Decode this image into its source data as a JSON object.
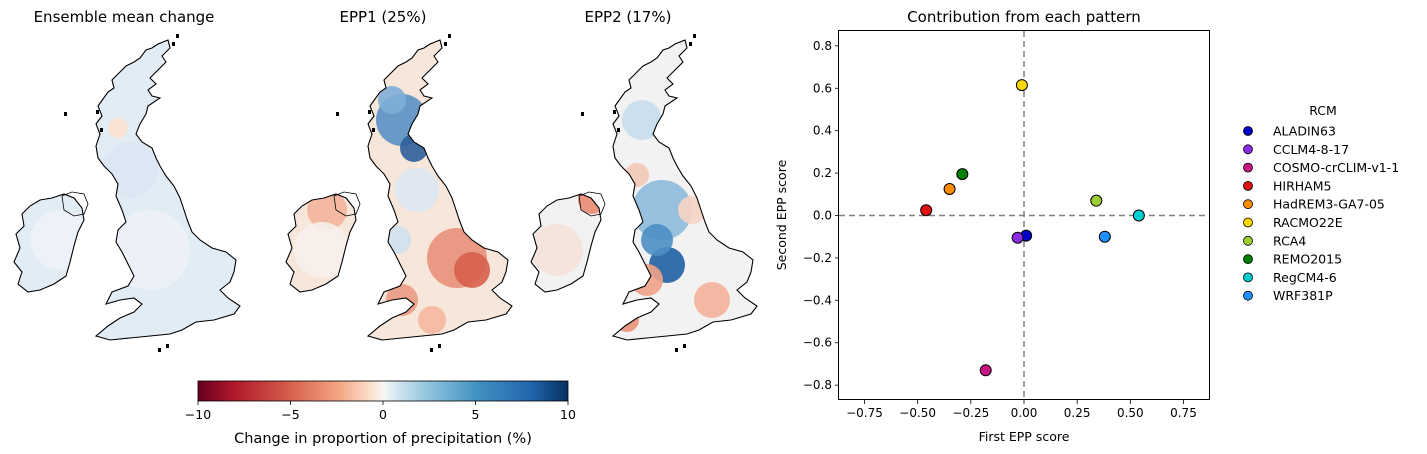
{
  "maps": [
    {
      "title": "Ensemble mean change",
      "style": "mean"
    },
    {
      "title": "EPP1 (25%)",
      "style": "epp1"
    },
    {
      "title": "EPP2 (17%)",
      "style": "epp2"
    }
  ],
  "colorbar": {
    "label": "Change in proportion of precipitation (%)",
    "min": -10,
    "max": 10,
    "ticks": [
      -10,
      -5,
      0,
      5,
      10
    ],
    "tick_labels": [
      "−10",
      "−5",
      "0",
      "5",
      "10"
    ],
    "colormap": "RdBu"
  },
  "chart_data": {
    "type": "scatter",
    "title": "Contribution from each pattern",
    "xlabel": "First EPP score",
    "ylabel": "Second EPP score",
    "xlim": [
      -0.87,
      0.87
    ],
    "ylim": [
      -0.87,
      0.87
    ],
    "xticks": [
      -0.75,
      -0.5,
      -0.25,
      0.0,
      0.25,
      0.5,
      0.75
    ],
    "xtick_labels": [
      "−0.75",
      "−0.50",
      "−0.25",
      "0.00",
      "0.25",
      "0.50",
      "0.75"
    ],
    "yticks": [
      -0.8,
      -0.6,
      -0.4,
      -0.2,
      0.0,
      0.2,
      0.4,
      0.6,
      0.8
    ],
    "ytick_labels": [
      "−0.8",
      "−0.6",
      "−0.4",
      "−0.2",
      "0.0",
      "0.2",
      "0.4",
      "0.6",
      "0.8"
    ],
    "reference_lines": {
      "x": 0,
      "y": 0
    },
    "legend_title": "RCM",
    "legend_position": "outside-right",
    "series": [
      {
        "name": "ALADIN63",
        "x": 0.01,
        "y": -0.095,
        "color": "#0000c8"
      },
      {
        "name": "CCLM4-8-17",
        "x": -0.03,
        "y": -0.105,
        "color": "#8a2be2"
      },
      {
        "name": "COSMO-crCLIM-v1-1",
        "x": -0.18,
        "y": -0.73,
        "color": "#c71585"
      },
      {
        "name": "HIRHAM5",
        "x": -0.46,
        "y": 0.025,
        "color": "#e01010"
      },
      {
        "name": "HadREM3-GA7-05",
        "x": -0.35,
        "y": 0.125,
        "color": "#ff8c00"
      },
      {
        "name": "RACMO22E",
        "x": -0.01,
        "y": 0.615,
        "color": "#ffd700"
      },
      {
        "name": "RCA4",
        "x": 0.34,
        "y": 0.07,
        "color": "#9acd32"
      },
      {
        "name": "REMO2015",
        "x": -0.29,
        "y": 0.195,
        "color": "#008000"
      },
      {
        "name": "RegCM4-6",
        "x": 0.54,
        "y": 0.0,
        "color": "#00ced1"
      },
      {
        "name": "WRF381P",
        "x": 0.38,
        "y": -0.1,
        "color": "#1e90ff"
      }
    ]
  }
}
